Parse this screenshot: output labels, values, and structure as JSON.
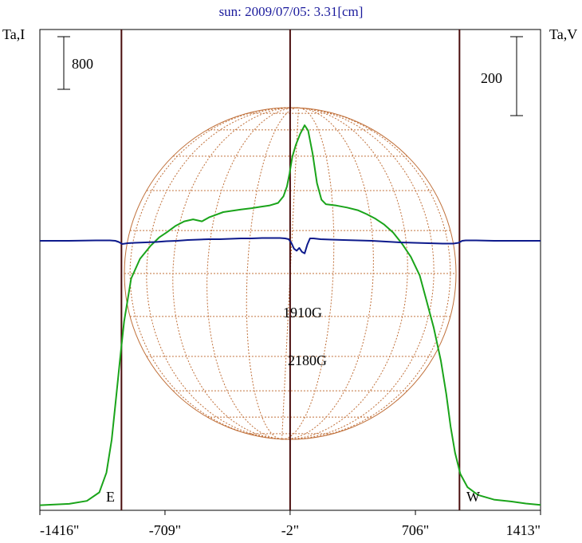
{
  "chart_data": {
    "type": "line",
    "title": "sun: 2009/07/05: 3.31[cm]",
    "left_axis_label": "Ta,I",
    "right_axis_label": "Ta,V",
    "left_scale_bar_label": "800",
    "right_scale_bar_label": "200",
    "x_ticks": [
      "-1416\"",
      "-709\"",
      "-2\"",
      "706\"",
      "1413\""
    ],
    "x_tick_values": [
      -1416,
      -709,
      -2,
      706,
      1413
    ],
    "xlim": [
      -1416,
      1413
    ],
    "limb_labels": {
      "east": "E",
      "west": "W"
    },
    "vertical_markers_arcsec": [
      -955,
      -2,
      955
    ],
    "annotations": [
      {
        "text": "1910G"
      },
      {
        "text": "2180G"
      }
    ],
    "series": [
      {
        "axis": "Ta,I",
        "color": "#1aa41a",
        "points": [
          [
            -1416,
            5
          ],
          [
            -1250,
            25
          ],
          [
            -1150,
            70
          ],
          [
            -1080,
            200
          ],
          [
            -1040,
            500
          ],
          [
            -1010,
            1000
          ],
          [
            -985,
            1650
          ],
          [
            -960,
            2300
          ],
          [
            -940,
            2800
          ],
          [
            -900,
            3450
          ],
          [
            -850,
            3750
          ],
          [
            -790,
            3950
          ],
          [
            -740,
            4080
          ],
          [
            -700,
            4150
          ],
          [
            -650,
            4250
          ],
          [
            -600,
            4320
          ],
          [
            -550,
            4350
          ],
          [
            -500,
            4320
          ],
          [
            -460,
            4380
          ],
          [
            -420,
            4420
          ],
          [
            -380,
            4460
          ],
          [
            -330,
            4480
          ],
          [
            -280,
            4500
          ],
          [
            -220,
            4520
          ],
          [
            -170,
            4540
          ],
          [
            -120,
            4560
          ],
          [
            -70,
            4600
          ],
          [
            -40,
            4700
          ],
          [
            -20,
            4850
          ],
          [
            -5,
            5050
          ],
          [
            10,
            5300
          ],
          [
            30,
            5480
          ],
          [
            55,
            5650
          ],
          [
            80,
            5780
          ],
          [
            100,
            5700
          ],
          [
            125,
            5350
          ],
          [
            150,
            4900
          ],
          [
            175,
            4650
          ],
          [
            200,
            4580
          ],
          [
            260,
            4560
          ],
          [
            320,
            4530
          ],
          [
            380,
            4490
          ],
          [
            430,
            4430
          ],
          [
            480,
            4360
          ],
          [
            530,
            4270
          ],
          [
            580,
            4150
          ],
          [
            630,
            3980
          ],
          [
            680,
            3780
          ],
          [
            730,
            3500
          ],
          [
            770,
            3100
          ],
          [
            810,
            2700
          ],
          [
            850,
            2200
          ],
          [
            880,
            1700
          ],
          [
            905,
            1200
          ],
          [
            930,
            800
          ],
          [
            960,
            480
          ],
          [
            1000,
            280
          ],
          [
            1060,
            160
          ],
          [
            1150,
            90
          ],
          [
            1250,
            60
          ],
          [
            1330,
            30
          ],
          [
            1413,
            10
          ]
        ]
      },
      {
        "axis": "Ta,V",
        "color": "#0d1a8c",
        "points": [
          [
            -1416,
            0
          ],
          [
            -1250,
            0
          ],
          [
            -1100,
            1
          ],
          [
            -1020,
            1
          ],
          [
            -990,
            0
          ],
          [
            -970,
            -3
          ],
          [
            -950,
            -8
          ],
          [
            -920,
            -6
          ],
          [
            -880,
            -5
          ],
          [
            -820,
            -4
          ],
          [
            -760,
            -3
          ],
          [
            -700,
            -1
          ],
          [
            -640,
            0
          ],
          [
            -580,
            2
          ],
          [
            -520,
            3
          ],
          [
            -460,
            4
          ],
          [
            -400,
            4
          ],
          [
            -340,
            5
          ],
          [
            -280,
            6
          ],
          [
            -220,
            6
          ],
          [
            -160,
            7
          ],
          [
            -100,
            7
          ],
          [
            -60,
            7
          ],
          [
            -30,
            6
          ],
          [
            -10,
            4
          ],
          [
            5,
            -5
          ],
          [
            20,
            -20
          ],
          [
            35,
            -25
          ],
          [
            50,
            -18
          ],
          [
            65,
            -28
          ],
          [
            80,
            -32
          ],
          [
            95,
            -10
          ],
          [
            110,
            6
          ],
          [
            130,
            6
          ],
          [
            170,
            4
          ],
          [
            230,
            3
          ],
          [
            300,
            2
          ],
          [
            380,
            1
          ],
          [
            460,
            0
          ],
          [
            540,
            -2
          ],
          [
            620,
            -4
          ],
          [
            700,
            -5
          ],
          [
            780,
            -6
          ],
          [
            860,
            -7
          ],
          [
            920,
            -7
          ],
          [
            950,
            -5
          ],
          [
            970,
            0
          ],
          [
            990,
            1
          ],
          [
            1050,
            1
          ],
          [
            1150,
            0
          ],
          [
            1250,
            0
          ],
          [
            1413,
            0
          ]
        ]
      }
    ]
  }
}
